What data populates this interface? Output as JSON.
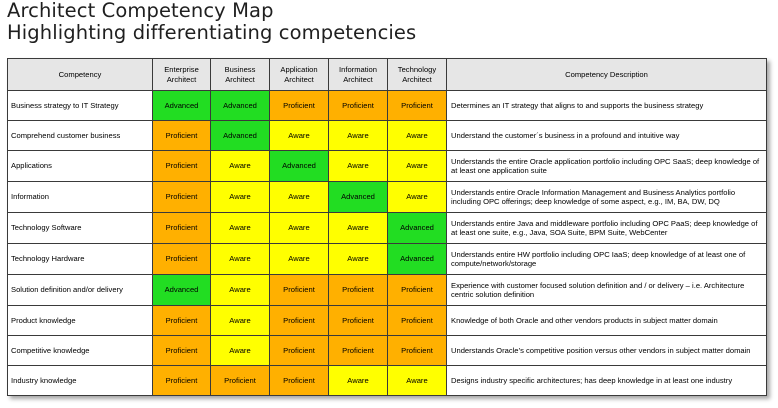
{
  "titles": {
    "line1": "Architect Competency Map",
    "line2": "Highlighting differentiating competencies"
  },
  "table": {
    "headers": {
      "competency": "Competency",
      "roles": [
        "Enterprise Architect",
        "Business Architect",
        "Application Architect",
        "Information Architect",
        "Technology Architect"
      ],
      "description": "Competency Description"
    },
    "level_colors": {
      "Advanced": "#22dd22",
      "Proficient": "#ffb000",
      "Aware": "#ffff00"
    },
    "rows": [
      {
        "competency": "Business strategy to IT Strategy",
        "levels": [
          "Advanced",
          "Advanced",
          "Proficient",
          "Proficient",
          "Proficient"
        ],
        "description": "Determines an IT strategy that aligns to and supports the business strategy"
      },
      {
        "competency": "Comprehend customer business",
        "levels": [
          "Proficient",
          "Advanced",
          "Aware",
          "Aware",
          "Aware"
        ],
        "description": "Understand the customer´s business in a profound and intuitive way"
      },
      {
        "competency": "Applications",
        "levels": [
          "Proficient",
          "Aware",
          "Advanced",
          "Aware",
          "Aware"
        ],
        "description": "Understands the entire Oracle application portfolio including OPC SaaS; deep knowledge of at least one application suite"
      },
      {
        "competency": "Information",
        "levels": [
          "Proficient",
          "Aware",
          "Aware",
          "Advanced",
          "Aware"
        ],
        "description": "Understands entire Oracle Information Management and Business Analytics portfolio including OPC offerings; deep knowledge of some aspect, e.g., IM, BA, DW, DQ"
      },
      {
        "competency": "Technology Software",
        "levels": [
          "Proficient",
          "Aware",
          "Aware",
          "Aware",
          "Advanced"
        ],
        "description": "Understands entire Java and middleware portfolio including OPC PaaS; deep knowledge of at least one suite, e.g., Java, SOA Suite, BPM Suite, WebCenter"
      },
      {
        "competency": "Technology Hardware",
        "levels": [
          "Proficient",
          "Aware",
          "Aware",
          "Aware",
          "Advanced"
        ],
        "description": "Understands entire HW portfolio including OPC IaaS; deep knowledge of at least one of compute/network/storage"
      },
      {
        "competency": "Solution definition and/or delivery",
        "levels": [
          "Advanced",
          "Aware",
          "Proficient",
          "Proficient",
          "Proficient"
        ],
        "description": "Experience with customer focused solution definition  and / or delivery – i.e. Architecture centric solution definition"
      },
      {
        "competency": "Product knowledge",
        "levels": [
          "Proficient",
          "Aware",
          "Proficient",
          "Proficient",
          "Proficient"
        ],
        "description": "Knowledge of both Oracle and other vendors products in subject matter domain"
      },
      {
        "competency": "Competitive knowledge",
        "levels": [
          "Proficient",
          "Aware",
          "Proficient",
          "Proficient",
          "Proficient"
        ],
        "description": "Understands Oracle’s competitive position versus other vendors in subject matter domain"
      },
      {
        "competency": "Industry knowledge",
        "levels": [
          "Proficient",
          "Proficient",
          "Proficient",
          "Aware",
          "Aware"
        ],
        "description": "Designs industry specific architectures; has deep knowledge in at least one industry"
      }
    ]
  }
}
